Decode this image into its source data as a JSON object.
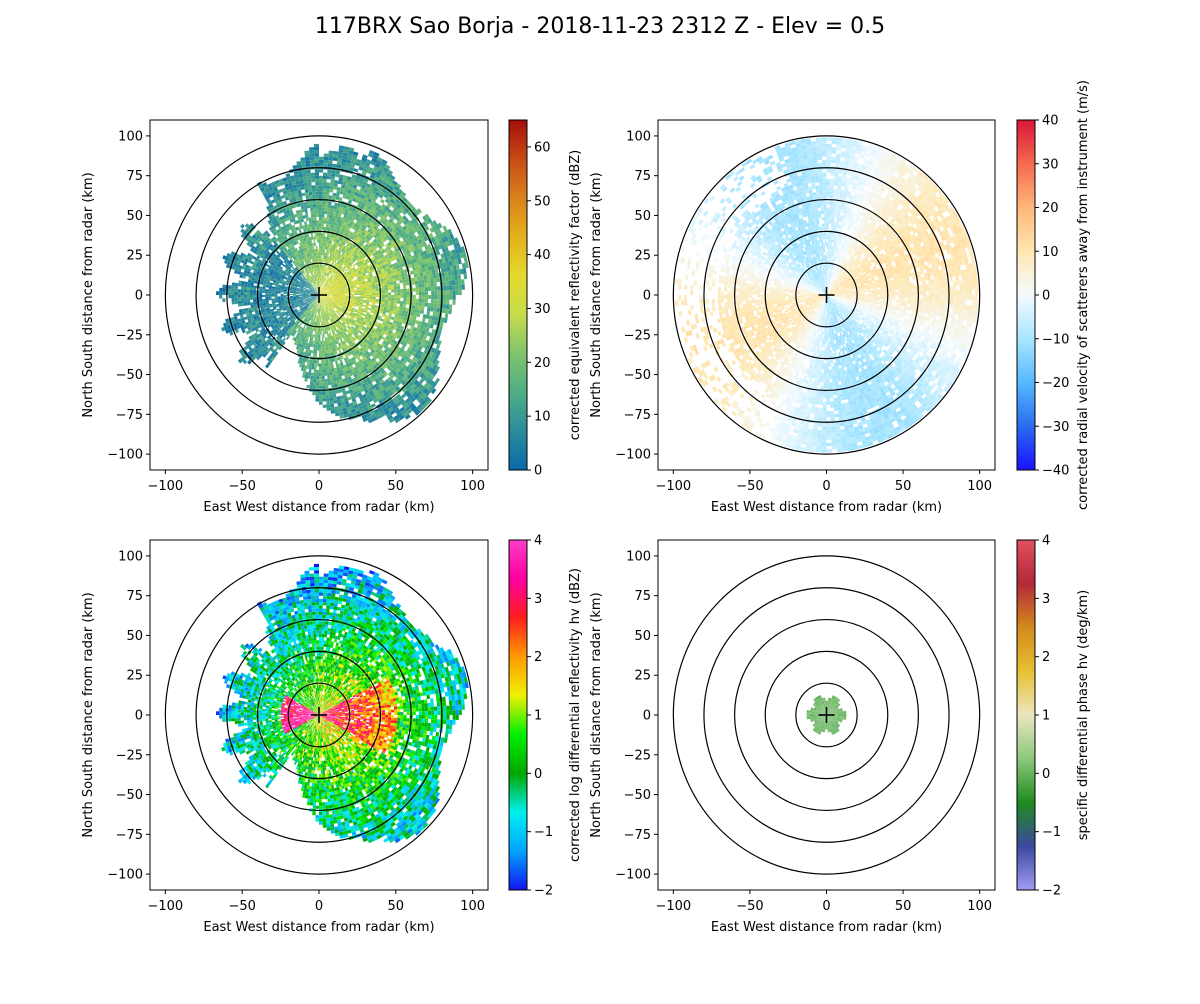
{
  "figure": {
    "title": "117BRX Sao Borja - 2018-11-23 2312 Z -  Elev = 0.5"
  },
  "chart_data": [
    {
      "type": "heatmap",
      "id": "reflectivity",
      "title": "",
      "xlabel": "East West distance from radar (km)",
      "ylabel": "North South distance from radar (km)",
      "xlim": [
        -110,
        110
      ],
      "ylim": [
        -110,
        110
      ],
      "xticks": [
        -100,
        -50,
        0,
        50,
        100
      ],
      "yticks": [
        -100,
        -75,
        -50,
        -25,
        0,
        25,
        50,
        75,
        100
      ],
      "range_rings_km": [
        20,
        40,
        60,
        80,
        100
      ],
      "echo_extent_km": 98,
      "colorbar": {
        "label": "corrected equivalent reflectivity factor (dBZ)",
        "min": 0,
        "max": 65,
        "ticks": [
          0,
          10,
          20,
          30,
          40,
          50,
          60
        ],
        "colors": [
          "#0a6aa8",
          "#2b8c9c",
          "#4fae84",
          "#7fc46c",
          "#c6dd4a",
          "#e5d92e",
          "#e3b11c",
          "#d9811a",
          "#c84a14",
          "#a50f0a"
        ]
      }
    },
    {
      "type": "heatmap",
      "id": "velocity",
      "title": "",
      "xlabel": "East West distance from radar (km)",
      "ylabel": "North South distance from radar (km)",
      "xlim": [
        -110,
        110
      ],
      "ylim": [
        -110,
        110
      ],
      "xticks": [
        -100,
        -50,
        0,
        50,
        100
      ],
      "yticks": [
        -100,
        -75,
        -50,
        -25,
        0,
        25,
        50,
        75,
        100
      ],
      "range_rings_km": [
        20,
        40,
        60,
        80,
        100
      ],
      "echo_extent_km": 100,
      "colorbar": {
        "label": "corrected radial velocity of scatterers away from instrument (m/s)",
        "min": -40,
        "max": 40,
        "ticks": [
          -40,
          -30,
          -20,
          -10,
          0,
          10,
          20,
          30,
          40
        ],
        "colors": [
          "#1a10ff",
          "#2a6cf0",
          "#56b8ff",
          "#a8e6ff",
          "#f4fbff",
          "#ffe7b0",
          "#ffb77a",
          "#f46a4e",
          "#d9163a"
        ]
      }
    },
    {
      "type": "heatmap",
      "id": "zdr",
      "title": "",
      "xlabel": "East West distance from radar (km)",
      "ylabel": "North South distance from radar (km)",
      "xlim": [
        -110,
        110
      ],
      "ylim": [
        -110,
        110
      ],
      "xticks": [
        -100,
        -50,
        0,
        50,
        100
      ],
      "yticks": [
        -100,
        -75,
        -50,
        -25,
        0,
        25,
        50,
        75,
        100
      ],
      "range_rings_km": [
        20,
        40,
        60,
        80,
        100
      ],
      "echo_extent_km": 98,
      "colorbar": {
        "label": "corrected log differential reflectivity hv (dBZ)",
        "min": -2,
        "max": 4,
        "ticks": [
          -2,
          -1,
          0,
          1,
          2,
          3,
          4
        ],
        "colors": [
          "#1414f0",
          "#00a4ff",
          "#00f0f0",
          "#00a800",
          "#00f000",
          "#f0f000",
          "#ff9a00",
          "#ff1e1e",
          "#ff00a0",
          "#ff3cc8"
        ]
      }
    },
    {
      "type": "heatmap",
      "id": "kdp",
      "title": "",
      "xlabel": "East West distance from radar (km)",
      "ylabel": "North South distance from radar (km)",
      "xlim": [
        -110,
        110
      ],
      "ylim": [
        -110,
        110
      ],
      "xticks": [
        -100,
        -50,
        0,
        50,
        100
      ],
      "yticks": [
        -100,
        -75,
        -50,
        -25,
        0,
        25,
        50,
        75,
        100
      ],
      "range_rings_km": [
        20,
        40,
        60,
        80,
        100
      ],
      "echo_extent_km": 12,
      "colorbar": {
        "label": "specific differential phase hv (deg/km)",
        "min": -2,
        "max": 4,
        "ticks": [
          -2,
          -1,
          0,
          1,
          2,
          3,
          4
        ],
        "colors": [
          "#a09cf4",
          "#3c48a0",
          "#1e8c1e",
          "#8cc87c",
          "#eae6c0",
          "#e8c032",
          "#d28a1c",
          "#b4283a",
          "#e05060"
        ]
      }
    }
  ]
}
